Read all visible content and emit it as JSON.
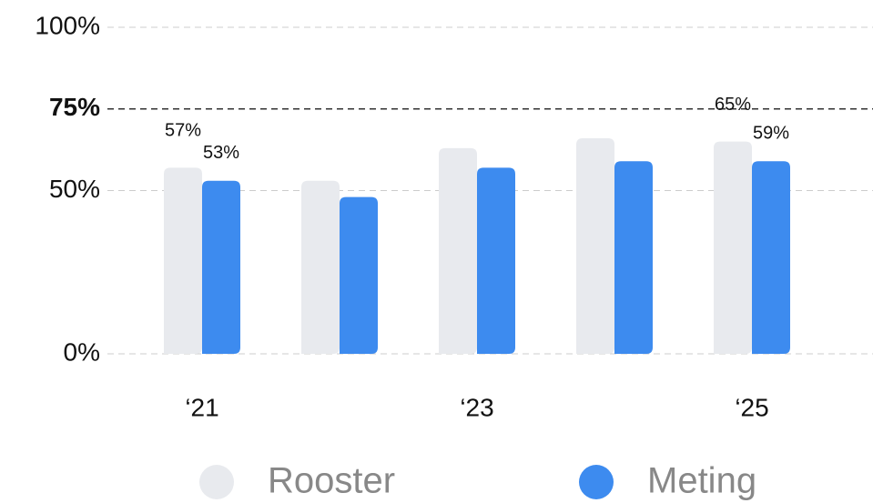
{
  "chart_data": {
    "type": "bar",
    "categories": [
      "‘21",
      null,
      "‘23",
      null,
      "‘25"
    ],
    "series": [
      {
        "name": "Rooster",
        "color": "#e8eaee",
        "values": [
          57,
          53,
          63,
          66,
          65
        ],
        "value_labels": [
          "57%",
          null,
          null,
          null,
          "65%"
        ]
      },
      {
        "name": "Meting",
        "color": "#3d8bef",
        "values": [
          53,
          48,
          57,
          59,
          59
        ],
        "value_labels": [
          "53%",
          null,
          null,
          null,
          "59%"
        ]
      }
    ],
    "ylim": [
      0,
      100
    ],
    "yticks": [
      {
        "value": 0,
        "label": "0%"
      },
      {
        "value": 50,
        "label": "50%"
      },
      {
        "value": 75,
        "label": "75%"
      },
      {
        "value": 100,
        "label": "100%"
      }
    ],
    "highlight_ytick": 75,
    "grid": true,
    "legend": "bottom"
  }
}
